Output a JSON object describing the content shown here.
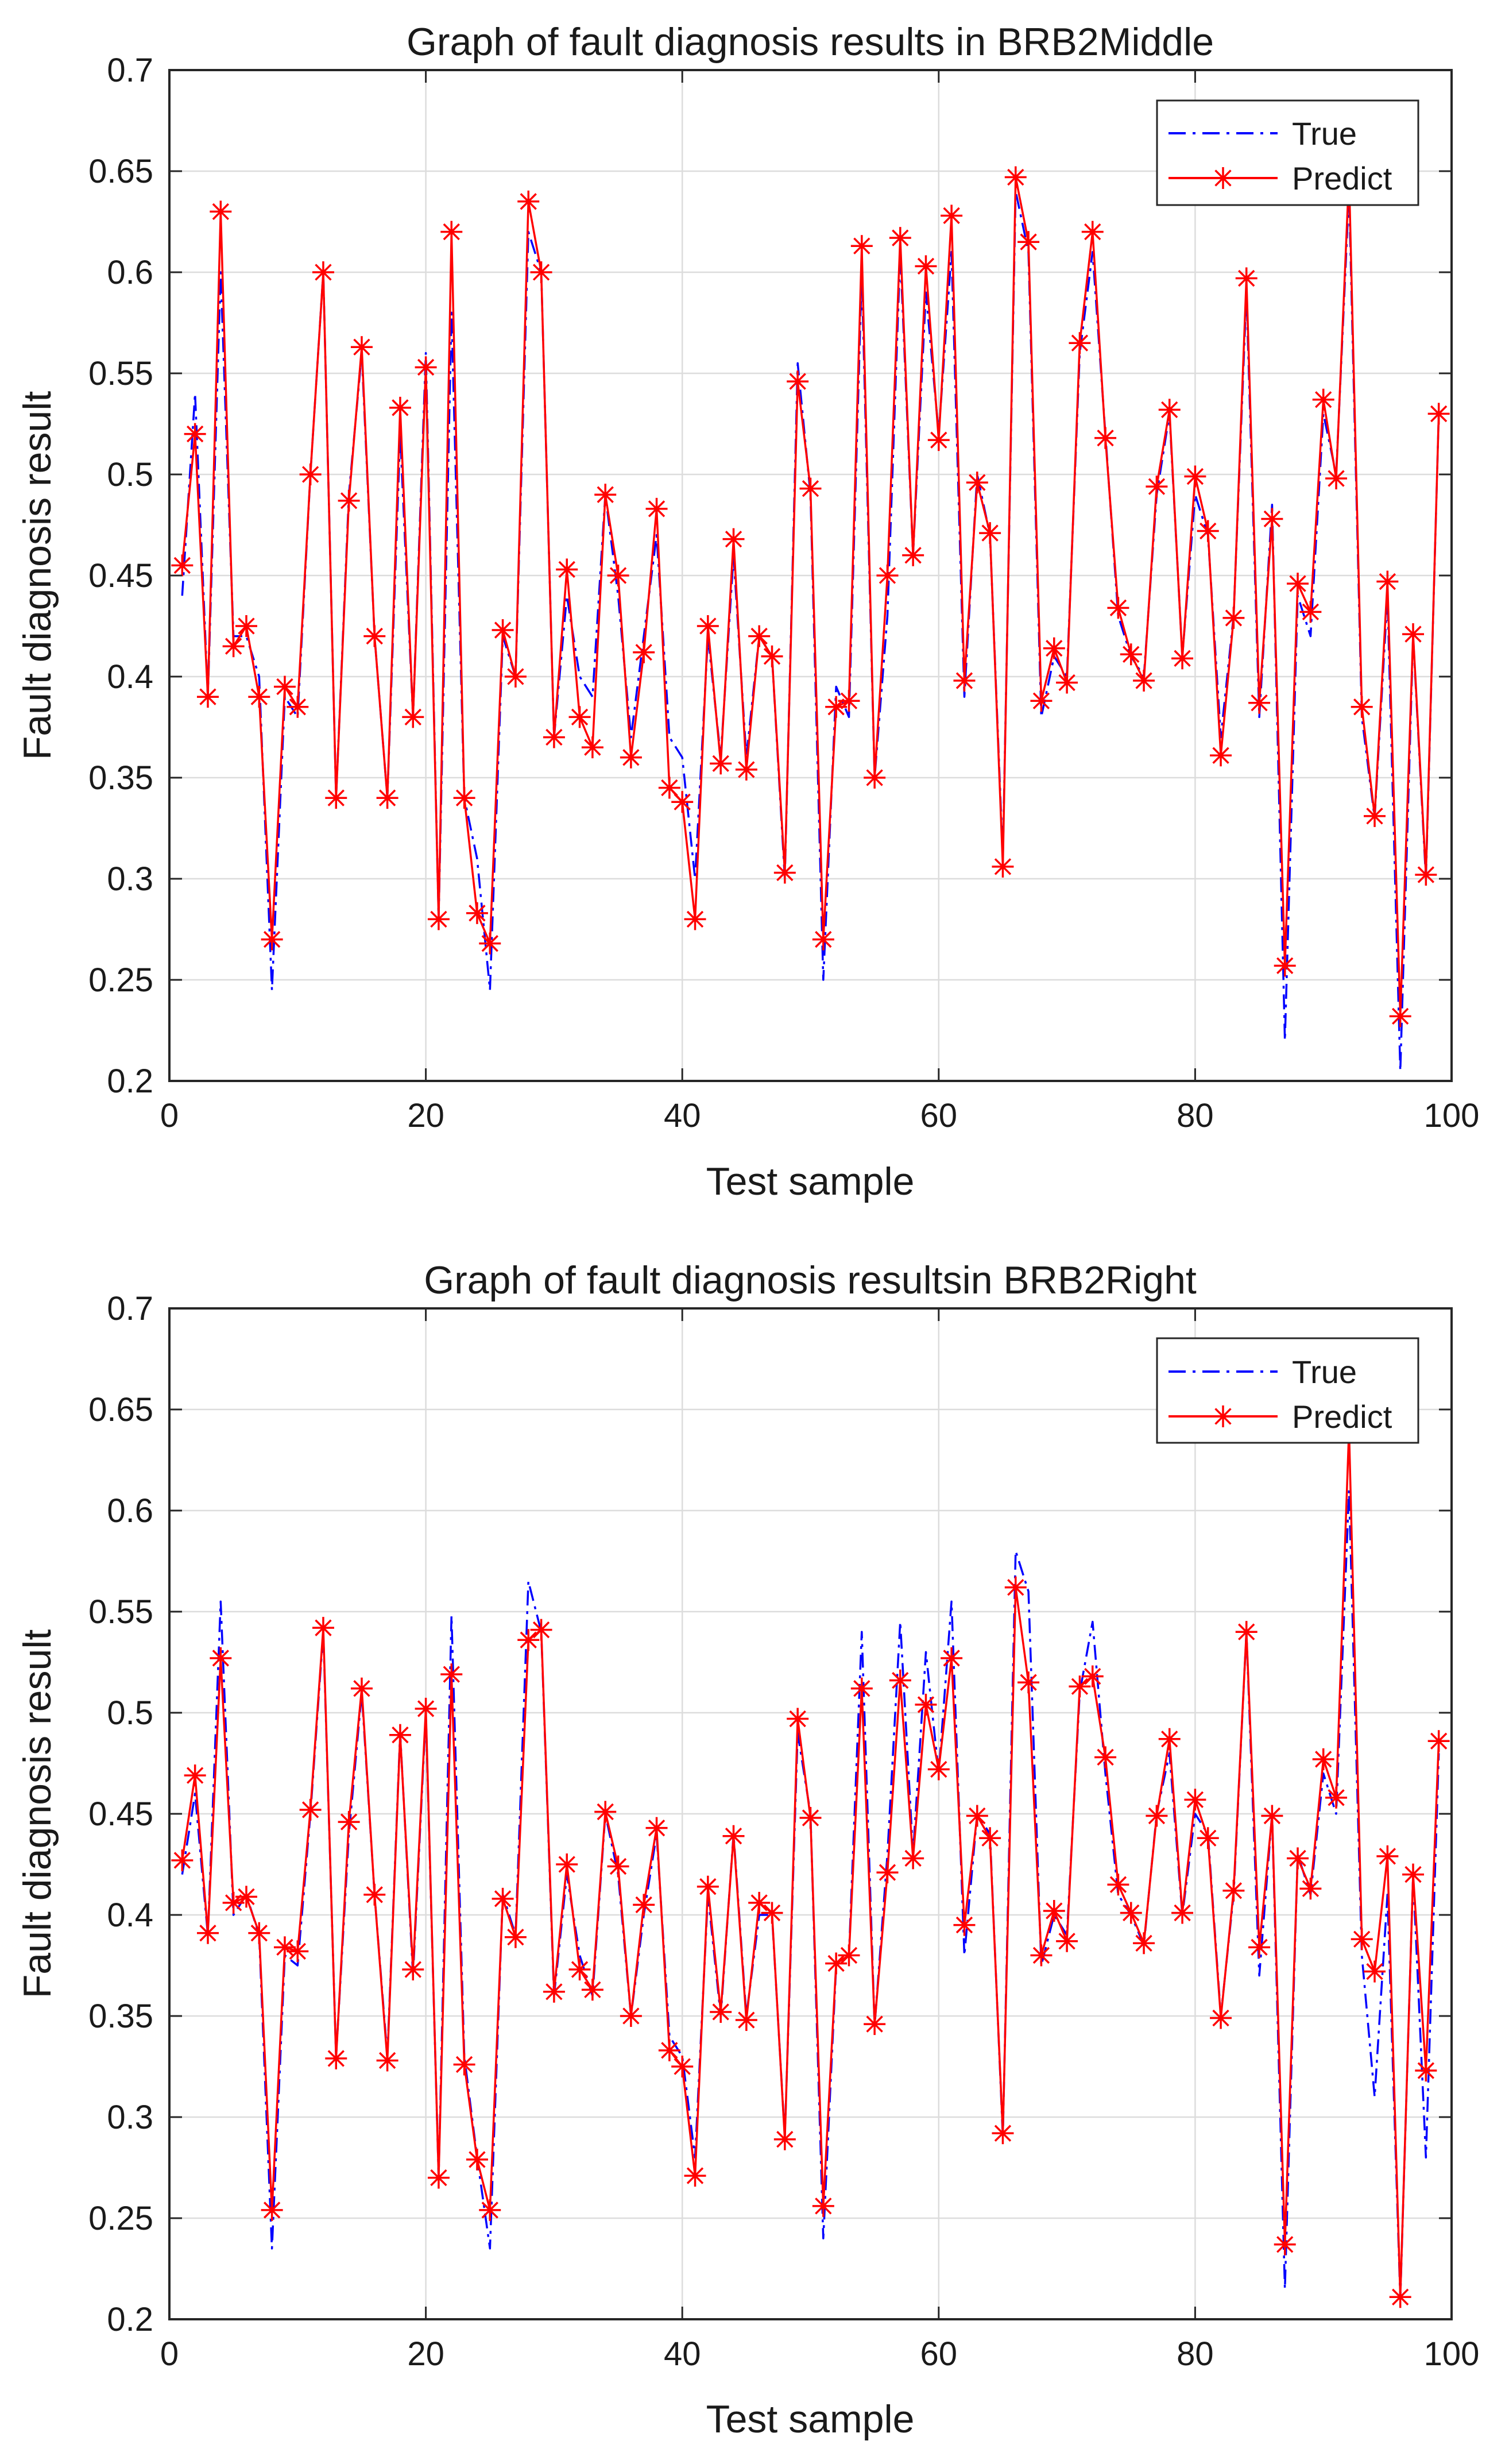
{
  "colors": {
    "true_series": "#0000ff",
    "predict_series": "#ff0000",
    "grid": "#dcdcdc",
    "axes": "#262626"
  },
  "chart_data": [
    {
      "type": "line",
      "title": "Graph of fault diagnosis results in BRB2Middle",
      "xlabel": "Test sample",
      "ylabel": "Fault diagnosis result",
      "xlim": [
        0,
        100
      ],
      "ylim": [
        0.2,
        0.7
      ],
      "xticks": [
        0,
        20,
        40,
        60,
        80,
        100
      ],
      "xtick_labels": [
        "0",
        "20",
        "40",
        "60",
        "80",
        "100"
      ],
      "yticks": [
        0.2,
        0.25,
        0.3,
        0.35,
        0.4,
        0.45,
        0.5,
        0.55,
        0.6,
        0.65,
        0.7
      ],
      "ytick_labels": [
        "0.2",
        "0.25",
        "0.3",
        "0.35",
        "0.4",
        "0.45",
        "0.5",
        "0.55",
        "0.6",
        "0.65",
        "0.7"
      ],
      "grid": true,
      "legend_position": "top-right",
      "series": [
        {
          "name": "True",
          "style": "dash-dot",
          "values": [
            0.44,
            0.54,
            0.39,
            0.6,
            0.42,
            0.42,
            0.4,
            0.245,
            0.39,
            0.38,
            0.5,
            0.6,
            0.34,
            0.49,
            0.56,
            0.42,
            0.34,
            0.52,
            0.38,
            0.56,
            0.28,
            0.58,
            0.34,
            0.31,
            0.245,
            0.42,
            0.4,
            0.62,
            0.6,
            0.37,
            0.44,
            0.4,
            0.39,
            0.49,
            0.44,
            0.37,
            0.42,
            0.47,
            0.37,
            0.36,
            0.3,
            0.42,
            0.36,
            0.46,
            0.36,
            0.42,
            0.41,
            0.3,
            0.555,
            0.49,
            0.25,
            0.395,
            0.38,
            0.6,
            0.35,
            0.43,
            0.61,
            0.46,
            0.59,
            0.52,
            0.61,
            0.39,
            0.5,
            0.47,
            0.31,
            0.64,
            0.61,
            0.38,
            0.41,
            0.4,
            0.56,
            0.61,
            0.52,
            0.43,
            0.41,
            0.4,
            0.49,
            0.53,
            0.41,
            0.49,
            0.47,
            0.37,
            0.43,
            0.59,
            0.38,
            0.485,
            0.22,
            0.44,
            0.42,
            0.53,
            0.5,
            0.64,
            0.38,
            0.33,
            0.44,
            0.205,
            0.42,
            0.3,
            0.53
          ]
        },
        {
          "name": "Predict",
          "style": "solid-asterisk",
          "values": [
            0.455,
            0.52,
            0.39,
            0.63,
            0.415,
            0.425,
            0.39,
            0.27,
            0.395,
            0.385,
            0.5,
            0.6,
            0.34,
            0.487,
            0.563,
            0.42,
            0.34,
            0.533,
            0.38,
            0.553,
            0.28,
            0.62,
            0.34,
            0.283,
            0.268,
            0.423,
            0.4,
            0.635,
            0.6,
            0.37,
            0.453,
            0.38,
            0.365,
            0.49,
            0.45,
            0.36,
            0.412,
            0.483,
            0.345,
            0.338,
            0.28,
            0.425,
            0.357,
            0.468,
            0.354,
            0.42,
            0.41,
            0.303,
            0.546,
            0.493,
            0.27,
            0.385,
            0.388,
            0.613,
            0.35,
            0.45,
            0.617,
            0.46,
            0.603,
            0.517,
            0.628,
            0.398,
            0.496,
            0.471,
            0.306,
            0.647,
            0.615,
            0.388,
            0.414,
            0.397,
            0.565,
            0.62,
            0.518,
            0.434,
            0.411,
            0.398,
            0.494,
            0.532,
            0.409,
            0.499,
            0.472,
            0.361,
            0.429,
            0.597,
            0.387,
            0.478,
            0.257,
            0.446,
            0.432,
            0.537,
            0.498,
            0.648,
            0.385,
            0.331,
            0.447,
            0.232,
            0.421,
            0.302,
            0.53
          ]
        }
      ]
    },
    {
      "type": "line",
      "title": "Graph of fault diagnosis resultsin BRB2Right",
      "xlabel": "Test sample",
      "ylabel": "Fault diagnosis result",
      "xlim": [
        0,
        100
      ],
      "ylim": [
        0.2,
        0.7
      ],
      "xticks": [
        0,
        20,
        40,
        60,
        80,
        100
      ],
      "xtick_labels": [
        "0",
        "20",
        "40",
        "60",
        "80",
        "100"
      ],
      "yticks": [
        0.2,
        0.25,
        0.3,
        0.35,
        0.4,
        0.45,
        0.5,
        0.55,
        0.6,
        0.65,
        0.7
      ],
      "ytick_labels": [
        "0.2",
        "0.25",
        "0.3",
        "0.35",
        "0.4",
        "0.45",
        "0.5",
        "0.55",
        "0.6",
        "0.65",
        "0.7"
      ],
      "grid": true,
      "legend_position": "top-right",
      "series": [
        {
          "name": "True",
          "style": "dash-dot",
          "values": [
            0.42,
            0.46,
            0.39,
            0.555,
            0.4,
            0.41,
            0.39,
            0.235,
            0.38,
            0.375,
            0.45,
            0.54,
            0.33,
            0.44,
            0.51,
            0.41,
            0.33,
            0.49,
            0.37,
            0.5,
            0.27,
            0.548,
            0.33,
            0.28,
            0.235,
            0.41,
            0.39,
            0.565,
            0.54,
            0.36,
            0.42,
            0.38,
            0.36,
            0.45,
            0.42,
            0.35,
            0.4,
            0.44,
            0.34,
            0.33,
            0.28,
            0.41,
            0.35,
            0.44,
            0.35,
            0.4,
            0.4,
            0.29,
            0.49,
            0.45,
            0.24,
            0.375,
            0.38,
            0.54,
            0.345,
            0.43,
            0.545,
            0.43,
            0.53,
            0.47,
            0.555,
            0.38,
            0.45,
            0.44,
            0.29,
            0.58,
            0.56,
            0.375,
            0.4,
            0.39,
            0.51,
            0.545,
            0.47,
            0.41,
            0.4,
            0.385,
            0.45,
            0.48,
            0.4,
            0.45,
            0.44,
            0.35,
            0.41,
            0.54,
            0.37,
            0.45,
            0.215,
            0.43,
            0.41,
            0.47,
            0.45,
            0.61,
            0.38,
            0.31,
            0.41,
            0.21,
            0.42,
            0.28,
            0.48
          ]
        },
        {
          "name": "Predict",
          "style": "solid-asterisk",
          "values": [
            0.427,
            0.469,
            0.391,
            0.527,
            0.406,
            0.409,
            0.391,
            0.254,
            0.384,
            0.382,
            0.452,
            0.542,
            0.329,
            0.446,
            0.512,
            0.41,
            0.328,
            0.489,
            0.373,
            0.502,
            0.27,
            0.519,
            0.326,
            0.279,
            0.254,
            0.408,
            0.389,
            0.536,
            0.541,
            0.362,
            0.425,
            0.373,
            0.363,
            0.451,
            0.424,
            0.35,
            0.405,
            0.443,
            0.333,
            0.325,
            0.271,
            0.414,
            0.352,
            0.439,
            0.348,
            0.406,
            0.401,
            0.289,
            0.497,
            0.448,
            0.256,
            0.376,
            0.38,
            0.512,
            0.346,
            0.421,
            0.516,
            0.428,
            0.504,
            0.472,
            0.527,
            0.395,
            0.449,
            0.438,
            0.292,
            0.562,
            0.515,
            0.38,
            0.402,
            0.387,
            0.513,
            0.518,
            0.478,
            0.415,
            0.401,
            0.386,
            0.449,
            0.487,
            0.401,
            0.457,
            0.438,
            0.349,
            0.412,
            0.54,
            0.384,
            0.449,
            0.237,
            0.428,
            0.413,
            0.477,
            0.458,
            0.64,
            0.388,
            0.372,
            0.429,
            0.211,
            0.42,
            0.323,
            0.486
          ]
        }
      ]
    }
  ]
}
